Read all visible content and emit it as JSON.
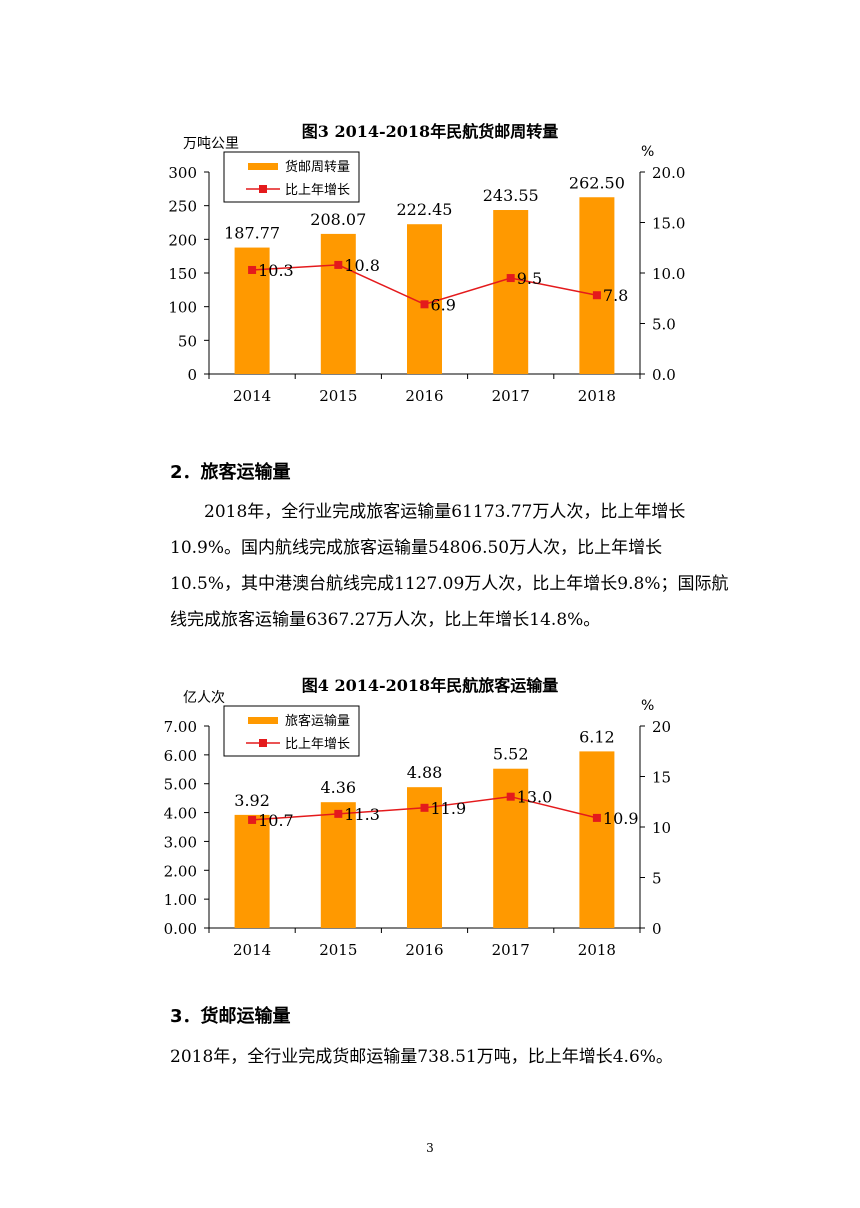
{
  "chart_data": [
    {
      "type": "bar",
      "title": "图3 2014-2018年民航货邮周转量",
      "ylabel": "万吨公里",
      "y2label": "%",
      "categories": [
        "2014",
        "2015",
        "2016",
        "2017",
        "2018"
      ],
      "ylim": [
        0,
        300
      ],
      "yticks": [
        "0",
        "50",
        "100",
        "150",
        "200",
        "250",
        "300"
      ],
      "y2lim": [
        0,
        20
      ],
      "y2ticks": [
        "0.0",
        "5.0",
        "10.0",
        "15.0",
        "20.0"
      ],
      "series": [
        {
          "name": "货邮周转量",
          "type": "bar",
          "axis": "left",
          "color": "#FF9900",
          "values": [
            187.77,
            208.07,
            222.45,
            243.55,
            262.5
          ],
          "labels": [
            "187.77",
            "208.07",
            "222.45",
            "243.55",
            "262.50"
          ]
        },
        {
          "name": "比上年增长",
          "type": "line",
          "axis": "right",
          "color": "#E41A1C",
          "values": [
            10.3,
            10.8,
            6.9,
            9.5,
            7.8
          ],
          "labels": [
            "10.3",
            "10.8",
            "6.9",
            "9.5",
            "7.8"
          ]
        }
      ],
      "legend": "top-left",
      "grid": false
    },
    {
      "type": "bar",
      "title": "图4 2014-2018年民航旅客运输量",
      "ylabel": "亿人次",
      "y2label": "%",
      "categories": [
        "2014",
        "2015",
        "2016",
        "2017",
        "2018"
      ],
      "ylim": [
        0,
        7
      ],
      "yticks": [
        "0.00",
        "1.00",
        "2.00",
        "3.00",
        "4.00",
        "5.00",
        "6.00",
        "7.00"
      ],
      "y2lim": [
        0,
        20
      ],
      "y2ticks": [
        "0",
        "5",
        "10",
        "15",
        "20"
      ],
      "series": [
        {
          "name": "旅客运输量",
          "type": "bar",
          "axis": "left",
          "color": "#FF9900",
          "values": [
            3.92,
            4.36,
            4.88,
            5.52,
            6.12
          ],
          "labels": [
            "3.92",
            "4.36",
            "4.88",
            "5.52",
            "6.12"
          ]
        },
        {
          "name": "比上年增长",
          "type": "line",
          "axis": "right",
          "color": "#E41A1C",
          "values": [
            10.7,
            11.3,
            11.9,
            13.0,
            10.9
          ],
          "labels": [
            "10.7",
            "11.3",
            "11.9",
            "13.0",
            "10.9"
          ]
        }
      ],
      "legend": "top-left",
      "grid": false
    }
  ],
  "section2": {
    "heading": "2．旅客运输量",
    "paragraph": "2018年，全行业完成旅客运输量61173.77万人次，比上年增长10.9%。国内航线完成旅客运输量54806.50万人次，比上年增长10.5%，其中港澳台航线完成1127.09万人次，比上年增长9.8%；国际航线完成旅客运输量6367.27万人次，比上年增长14.8%。"
  },
  "section3": {
    "heading": "3．货邮运输量",
    "paragraph": "2018年，全行业完成货邮运输量738.51万吨，比上年增长4.6%。"
  },
  "page_number": "3"
}
